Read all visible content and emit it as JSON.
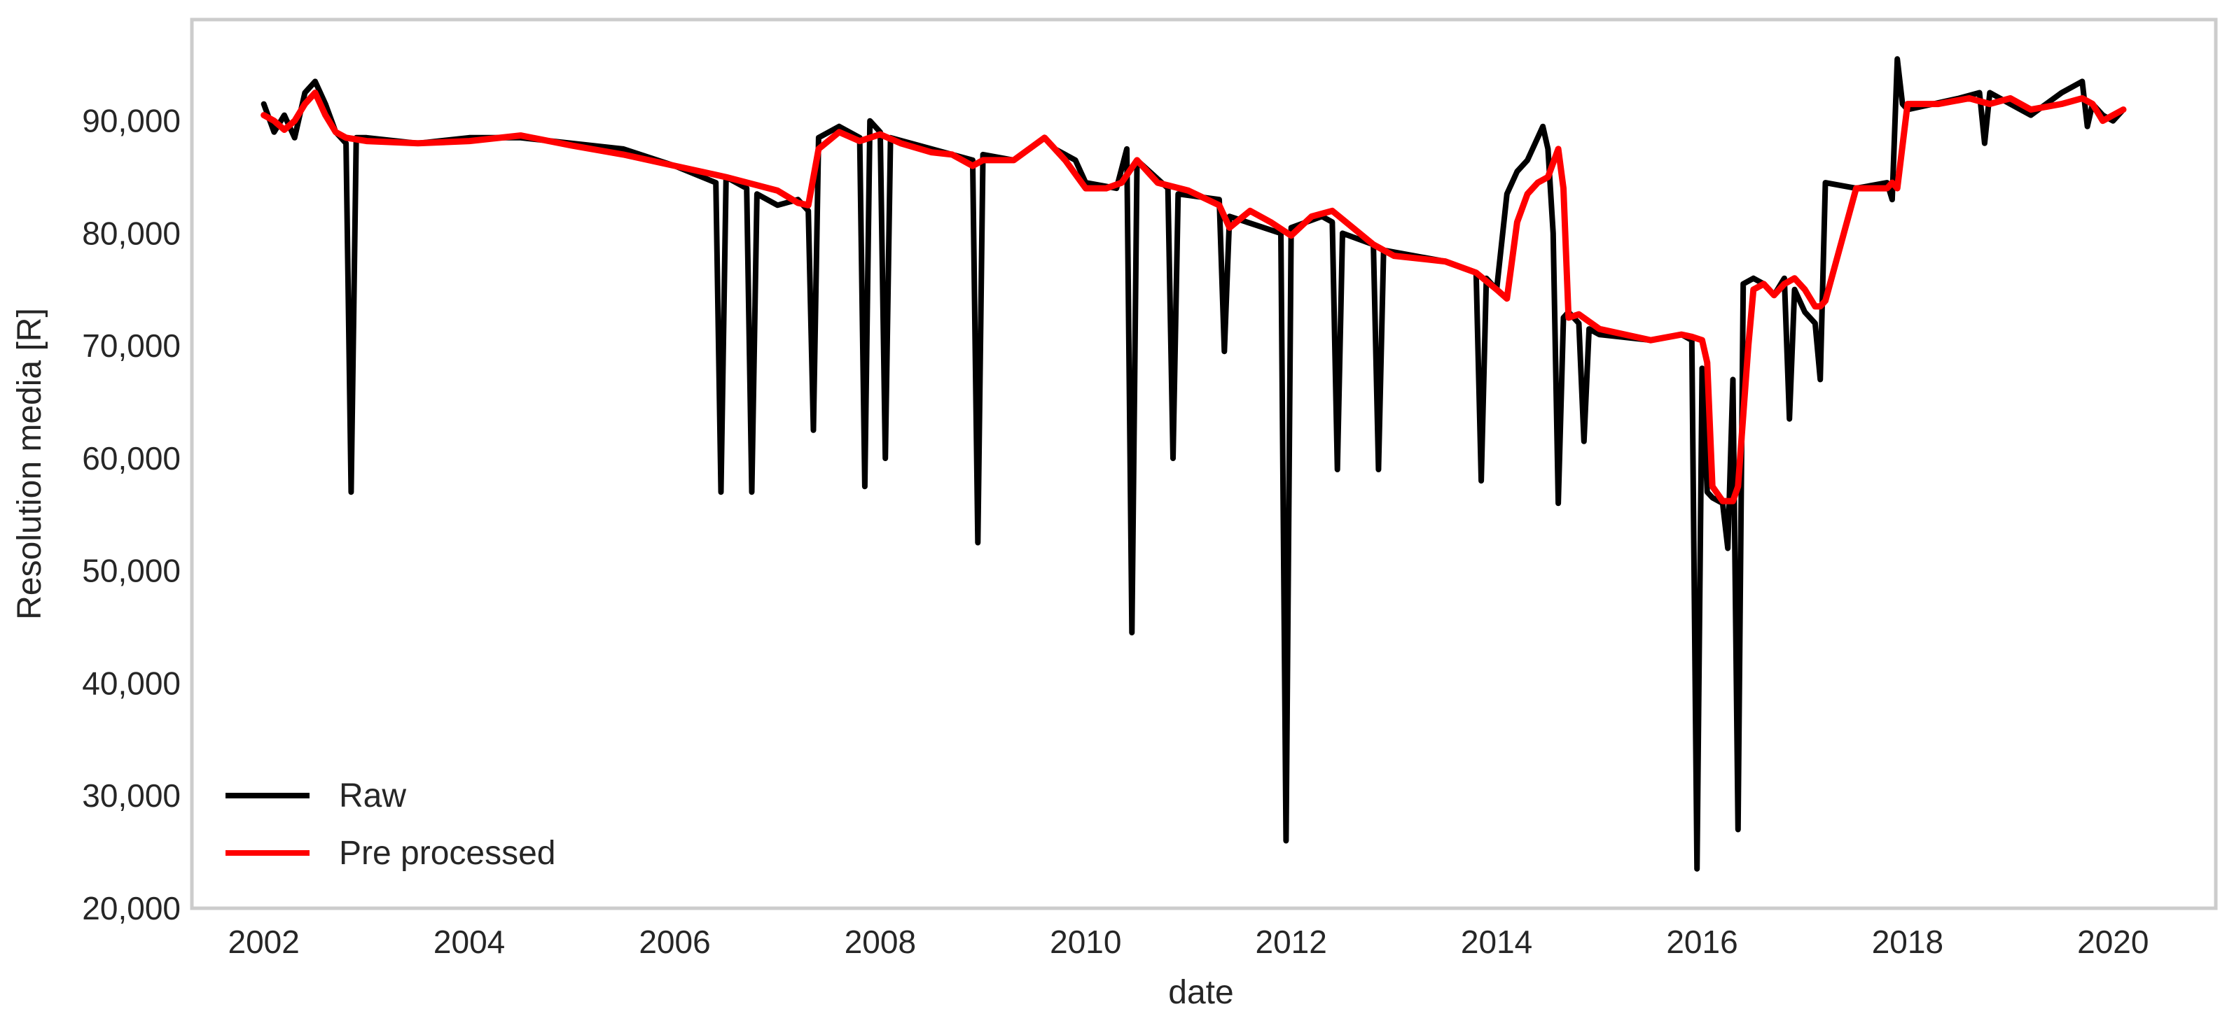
{
  "chart_data": {
    "type": "line",
    "title": "",
    "xlabel": "date",
    "ylabel": "Resolution media [R]",
    "xlim": [
      2001.3,
      2021.0
    ],
    "ylim": [
      20000,
      99000
    ],
    "x_ticks": [
      "2002",
      "2004",
      "2006",
      "2008",
      "2010",
      "2012",
      "2014",
      "2016",
      "2018",
      "2020"
    ],
    "y_ticks": [
      "20,000",
      "30,000",
      "40,000",
      "50,000",
      "60,000",
      "70,000",
      "80,000",
      "90,000"
    ],
    "grid": false,
    "legend": "bottom-left",
    "series": [
      {
        "name": "Raw",
        "color": "#000000",
        "x": [
          2002.0,
          2002.1,
          2002.2,
          2002.3,
          2002.4,
          2002.5,
          2002.6,
          2002.7,
          2002.8,
          2002.85,
          2002.9,
          2003.0,
          2003.5,
          2004.0,
          2004.5,
          2005.0,
          2005.5,
          2006.0,
          2006.4,
          2006.45,
          2006.5,
          2006.7,
          2006.75,
          2006.8,
          2007.0,
          2007.2,
          2007.3,
          2007.35,
          2007.4,
          2007.6,
          2007.8,
          2007.85,
          2007.9,
          2008.0,
          2008.05,
          2008.1,
          2008.5,
          2008.9,
          2008.95,
          2009.0,
          2009.3,
          2009.6,
          2009.7,
          2009.9,
          2010.0,
          2010.3,
          2010.4,
          2010.45,
          2010.5,
          2010.8,
          2010.85,
          2010.9,
          2011.3,
          2011.35,
          2011.4,
          2011.9,
          2011.95,
          2012.0,
          2012.3,
          2012.4,
          2012.45,
          2012.5,
          2012.8,
          2012.85,
          2012.9,
          2013.5,
          2013.8,
          2013.85,
          2013.9,
          2014.0,
          2014.1,
          2014.2,
          2014.3,
          2014.45,
          2014.5,
          2014.55,
          2014.6,
          2014.65,
          2014.7,
          2014.8,
          2014.85,
          2014.9,
          2015.0,
          2015.5,
          2015.8,
          2015.9,
          2015.95,
          2016.0,
          2016.05,
          2016.1,
          2016.2,
          2016.25,
          2016.3,
          2016.35,
          2016.4,
          2016.5,
          2016.6,
          2016.7,
          2016.8,
          2016.85,
          2016.9,
          2017.0,
          2017.1,
          2017.15,
          2017.2,
          2017.5,
          2017.8,
          2017.85,
          2017.9,
          2017.95,
          2018.0,
          2018.5,
          2018.7,
          2018.75,
          2018.8,
          2019.0,
          2019.2,
          2019.5,
          2019.7,
          2019.75,
          2019.8,
          2019.9,
          2020.0,
          2020.1
        ],
        "y": [
          91500,
          89000,
          90500,
          88500,
          92500,
          93500,
          91500,
          89000,
          88000,
          57000,
          88500,
          88500,
          88000,
          88500,
          88500,
          88000,
          87500,
          86000,
          84500,
          57000,
          85000,
          84000,
          57000,
          83500,
          82500,
          83000,
          82000,
          62500,
          88500,
          89500,
          88500,
          57500,
          90000,
          89000,
          60000,
          88500,
          87500,
          86500,
          52500,
          87000,
          86500,
          88500,
          87500,
          86500,
          84500,
          84000,
          87500,
          44500,
          86500,
          84000,
          60000,
          83500,
          83000,
          69500,
          81500,
          80000,
          26000,
          80500,
          81500,
          81000,
          59000,
          80000,
          79000,
          59000,
          78500,
          77500,
          76500,
          58000,
          76000,
          75000,
          83500,
          85500,
          86500,
          89500,
          87500,
          80000,
          56000,
          72500,
          73000,
          72000,
          61500,
          71500,
          71000,
          70500,
          71000,
          70500,
          23500,
          68000,
          57000,
          56500,
          56000,
          52000,
          67000,
          27000,
          75500,
          76000,
          75500,
          74500,
          76000,
          63500,
          75000,
          73000,
          72000,
          67000,
          84500,
          84000,
          84500,
          83000,
          95500,
          91500,
          91000,
          92000,
          92500,
          88000,
          92500,
          91500,
          90500,
          92500,
          93500,
          89500,
          91500,
          90500,
          90000,
          91000
        ]
      },
      {
        "name": "Pre processed",
        "color": "#ff0000",
        "x": [
          2002.0,
          2002.1,
          2002.2,
          2002.3,
          2002.4,
          2002.5,
          2002.6,
          2002.7,
          2002.8,
          2003.0,
          2003.5,
          2004.0,
          2004.5,
          2005.0,
          2005.5,
          2006.0,
          2006.5,
          2007.0,
          2007.2,
          2007.3,
          2007.4,
          2007.6,
          2007.8,
          2008.0,
          2008.2,
          2008.5,
          2008.7,
          2008.9,
          2009.0,
          2009.3,
          2009.6,
          2009.8,
          2010.0,
          2010.2,
          2010.35,
          2010.5,
          2010.7,
          2011.0,
          2011.3,
          2011.4,
          2011.6,
          2011.8,
          2012.0,
          2012.2,
          2012.4,
          2012.6,
          2012.8,
          2013.0,
          2013.5,
          2013.8,
          2014.0,
          2014.1,
          2014.2,
          2014.3,
          2014.4,
          2014.5,
          2014.6,
          2014.65,
          2014.7,
          2014.8,
          2015.0,
          2015.5,
          2015.8,
          2015.9,
          2016.0,
          2016.05,
          2016.1,
          2016.2,
          2016.3,
          2016.35,
          2016.45,
          2016.5,
          2016.6,
          2016.7,
          2016.8,
          2016.9,
          2017.0,
          2017.1,
          2017.15,
          2017.2,
          2017.5,
          2017.8,
          2017.85,
          2017.9,
          2018.0,
          2018.3,
          2018.6,
          2018.8,
          2019.0,
          2019.2,
          2019.5,
          2019.7,
          2019.8,
          2019.9,
          2020.0,
          2020.1
        ],
        "y": [
          90500,
          90000,
          89200,
          90000,
          91500,
          92500,
          90500,
          89000,
          88500,
          88200,
          88000,
          88200,
          88700,
          87800,
          87000,
          86000,
          85000,
          83800,
          82700,
          82500,
          87500,
          89000,
          88200,
          88800,
          88000,
          87200,
          87000,
          86000,
          86500,
          86500,
          88500,
          86500,
          84000,
          84000,
          84500,
          86500,
          84500,
          83800,
          82500,
          80500,
          82000,
          81000,
          79800,
          81500,
          82000,
          80500,
          79000,
          78000,
          77500,
          76500,
          75000,
          74200,
          81000,
          83500,
          84500,
          85000,
          87500,
          84000,
          72500,
          72800,
          71500,
          70500,
          71000,
          70800,
          70500,
          68500,
          57500,
          56200,
          56200,
          57500,
          70000,
          75000,
          75500,
          74500,
          75500,
          76000,
          75000,
          73500,
          73500,
          74000,
          84000,
          84000,
          84500,
          84000,
          91500,
          91500,
          92000,
          91500,
          92000,
          91000,
          91500,
          92000,
          91500,
          90000,
          90500,
          91000
        ]
      }
    ]
  }
}
